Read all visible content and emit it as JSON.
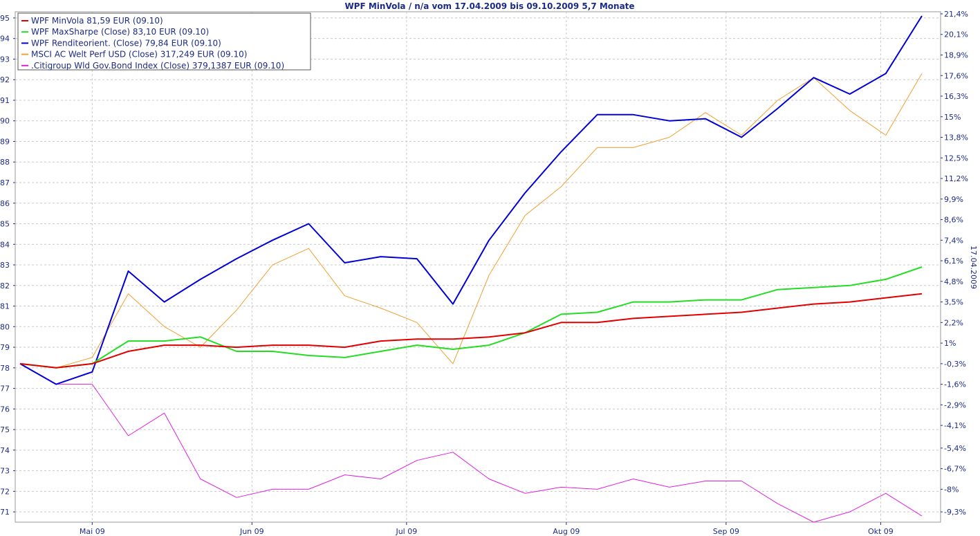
{
  "chart_data": {
    "type": "line",
    "title": "WPF MinVola / n/a vom 17.04.2009 bis 09.10.2009 5,7 Monate",
    "right_axis_label": "17.04.2009",
    "x_start": "2009-04-17",
    "x_end": "2009-10-09",
    "x_ticks": [
      {
        "date": "2009-05-01",
        "label": "Mai 09"
      },
      {
        "date": "2009-06-01",
        "label": "Jun 09"
      },
      {
        "date": "2009-07-01",
        "label": "Jul 09"
      },
      {
        "date": "2009-08-01",
        "label": "Aug 09"
      },
      {
        "date": "2009-09-01",
        "label": "Sep 09"
      },
      {
        "date": "2009-10-01",
        "label": "Okt 09"
      }
    ],
    "y_left": {
      "min": 70.5,
      "max": 95.3,
      "ticks": [
        71,
        72,
        73,
        74,
        75,
        76,
        77,
        78,
        79,
        80,
        81,
        82,
        83,
        84,
        85,
        86,
        87,
        88,
        89,
        90,
        91,
        92,
        93,
        94,
        95
      ]
    },
    "y_right_ticks": [
      {
        "value": 71.0,
        "label": "-9,3%"
      },
      {
        "value": 72.1,
        "label": "-8%"
      },
      {
        "value": 73.1,
        "label": "-6,7%"
      },
      {
        "value": 74.1,
        "label": "-5,4%"
      },
      {
        "value": 75.2,
        "label": "-4,1%"
      },
      {
        "value": 76.2,
        "label": "-2,9%"
      },
      {
        "value": 77.2,
        "label": "-1,6%"
      },
      {
        "value": 78.2,
        "label": "-0,3%"
      },
      {
        "value": 79.2,
        "label": "1%"
      },
      {
        "value": 80.2,
        "label": "2,2%"
      },
      {
        "value": 81.2,
        "label": "3,5%"
      },
      {
        "value": 82.2,
        "label": "4,8%"
      },
      {
        "value": 83.2,
        "label": "6,1%"
      },
      {
        "value": 84.2,
        "label": "7,4%"
      },
      {
        "value": 85.2,
        "label": "8,6%"
      },
      {
        "value": 86.2,
        "label": "9,9%"
      },
      {
        "value": 87.2,
        "label": "11,2%"
      },
      {
        "value": 88.2,
        "label": "12,5%"
      },
      {
        "value": 89.2,
        "label": "13,8%"
      },
      {
        "value": 90.2,
        "label": "15%"
      },
      {
        "value": 91.2,
        "label": "16,3%"
      },
      {
        "value": 92.2,
        "label": "17,6%"
      },
      {
        "value": 93.2,
        "label": "18,9%"
      },
      {
        "value": 94.2,
        "label": "20,1%"
      },
      {
        "value": 95.2,
        "label": "21,4%"
      }
    ],
    "grid": true,
    "legend_position": "top-left",
    "x": [
      "2009-04-17",
      "2009-04-24",
      "2009-05-01",
      "2009-05-08",
      "2009-05-15",
      "2009-05-22",
      "2009-05-29",
      "2009-06-05",
      "2009-06-12",
      "2009-06-19",
      "2009-06-26",
      "2009-07-03",
      "2009-07-10",
      "2009-07-17",
      "2009-07-24",
      "2009-07-31",
      "2009-08-07",
      "2009-08-14",
      "2009-08-21",
      "2009-08-28",
      "2009-09-04",
      "2009-09-11",
      "2009-09-18",
      "2009-09-25",
      "2009-10-02",
      "2009-10-09"
    ],
    "series": [
      {
        "name": "WPF MinVola 81,59 EUR (09.10)",
        "color": "#e00000",
        "width": 2,
        "values": [
          78.2,
          78.0,
          78.2,
          78.8,
          79.1,
          79.1,
          79.0,
          79.1,
          79.1,
          79.0,
          79.3,
          79.4,
          79.4,
          79.5,
          79.7,
          80.2,
          80.2,
          80.4,
          80.5,
          80.6,
          80.7,
          80.9,
          81.1,
          81.2,
          81.4,
          81.6
        ]
      },
      {
        "name": "WPF MaxSharpe (Close) 83,10 EUR (09.10)",
        "color": "#22dd22",
        "width": 2,
        "values": [
          78.2,
          78.0,
          78.2,
          79.3,
          79.3,
          79.5,
          78.8,
          78.8,
          78.6,
          78.5,
          78.8,
          79.1,
          78.9,
          79.1,
          79.7,
          80.6,
          80.7,
          81.2,
          81.2,
          81.3,
          81.3,
          81.8,
          81.9,
          82.0,
          82.3,
          82.9
        ]
      },
      {
        "name": "WPF Renditeorient. (Close) 79,84 EUR (09.10)",
        "color": "#0000d8",
        "width": 2,
        "values": [
          78.2,
          77.2,
          77.8,
          82.7,
          81.2,
          82.3,
          83.3,
          84.2,
          85.0,
          83.1,
          83.4,
          83.3,
          81.1,
          84.2,
          86.5,
          88.5,
          90.3,
          90.3,
          90.0,
          90.1,
          89.2,
          90.6,
          92.1,
          91.3,
          92.3,
          95.1
        ]
      },
      {
        "name": "MSCI AC Welt Perf USD (Close) 317,249 EUR (09.10)",
        "color": "#f0a030",
        "width": 1,
        "values": [
          78.2,
          78.0,
          78.5,
          81.6,
          80.0,
          79.0,
          80.8,
          83.0,
          83.8,
          81.5,
          80.9,
          80.2,
          78.2,
          82.5,
          85.4,
          86.8,
          88.7,
          88.7,
          89.2,
          90.4,
          89.3,
          91.0,
          92.1,
          90.5,
          89.3,
          92.3
        ]
      },
      {
        "name": ".Citigroup Wld Gov.Bond Index (Close) 379,1387 EUR (09.10)",
        "color": "#e020e0",
        "width": 1,
        "values": [
          78.2,
          77.2,
          77.2,
          74.7,
          75.8,
          72.6,
          71.7,
          72.1,
          72.1,
          72.8,
          72.6,
          73.5,
          73.9,
          72.6,
          71.9,
          72.2,
          72.1,
          72.6,
          72.2,
          72.5,
          72.5,
          71.4,
          70.5,
          71.0,
          71.9,
          70.8
        ]
      }
    ]
  }
}
